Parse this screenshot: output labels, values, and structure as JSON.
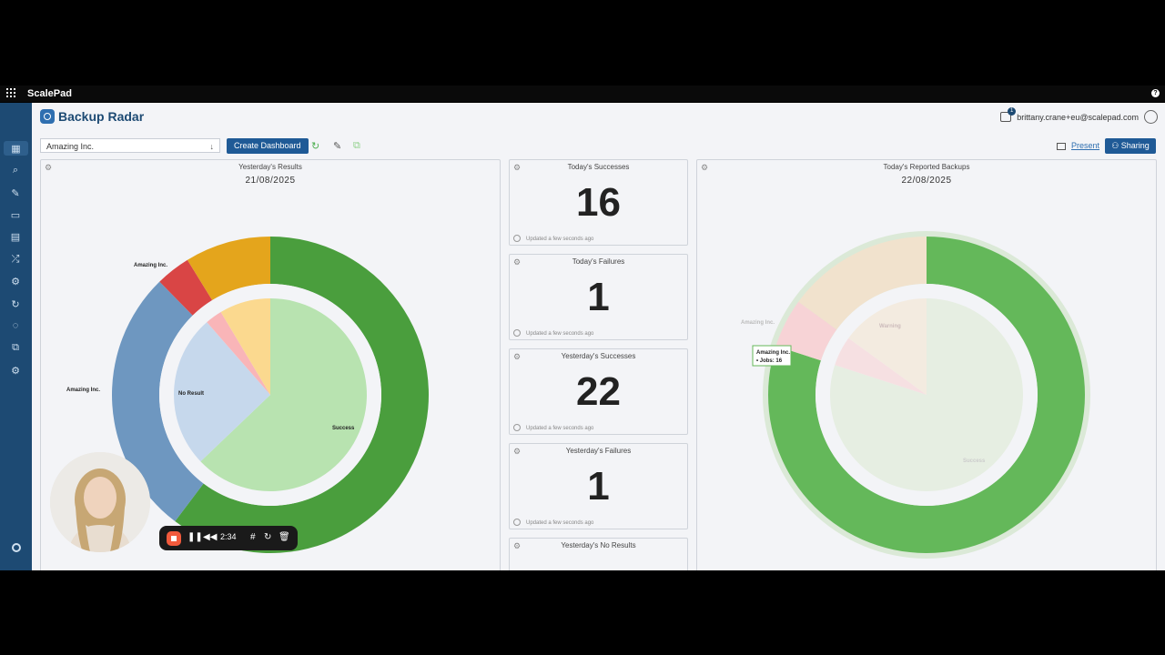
{
  "topbar": {
    "brand": "ScalePad",
    "help": "?"
  },
  "header": {
    "app_name": "Backup Radar",
    "notification_count": "1",
    "user_email": "brittany.crane+eu@scalepad.com"
  },
  "toolbar": {
    "company_select": "Amazing Inc.",
    "create_dashboard": "Create Dashboard",
    "present": "Present",
    "sharing": "Sharing"
  },
  "sidebar": {
    "icons": [
      "dashboard-icon",
      "search-icon",
      "wrench-icon",
      "card-icon",
      "report-icon",
      "shuffle-icon",
      "gear-icon",
      "sync-icon",
      "chat-icon",
      "integrations-icon",
      "settings-icon"
    ]
  },
  "panels": {
    "yesterday_results": {
      "title": "Yesterday's Results",
      "date": "21/08/2025"
    },
    "today_reported": {
      "title": "Today's Reported Backups",
      "date": "22/08/2025"
    }
  },
  "stats": [
    {
      "title": "Today's Successes",
      "value": "16",
      "updated": "Updated a few seconds ago"
    },
    {
      "title": "Today's Failures",
      "value": "1",
      "updated": "Updated a few seconds ago"
    },
    {
      "title": "Yesterday's Successes",
      "value": "22",
      "updated": "Updated a few seconds ago"
    },
    {
      "title": "Yesterday's Failures",
      "value": "1",
      "updated": "Updated a few seconds ago"
    },
    {
      "title": "Yesterday's No Results",
      "value": "",
      "updated": ""
    }
  ],
  "chart_data": [
    {
      "type": "pie",
      "title": "Yesterday's Results",
      "outer": {
        "slices": [
          {
            "label": "Success",
            "value": 22,
            "color": "#4a9e3d"
          },
          {
            "label": "Amazing Inc.",
            "value": 10,
            "color": "#6e97c0"
          },
          {
            "label": "Amazing Inc.",
            "value": 1.3,
            "color": "#d94545"
          },
          {
            "label": "",
            "value": 3.2,
            "color": "#e4a51c"
          }
        ]
      },
      "inner": {
        "slices": [
          {
            "label": "Success",
            "value": 22,
            "color": "#b8e3b0"
          },
          {
            "label": "No Result",
            "value": 9,
            "color": "#c6d8ec"
          },
          {
            "label": "",
            "value": 1,
            "color": "#f9b5b8"
          },
          {
            "label": "",
            "value": 3,
            "color": "#fbd98f"
          }
        ]
      },
      "annotations": [
        "Amazing Inc.",
        "Amazing Inc.",
        "No Result",
        "Success"
      ]
    },
    {
      "type": "pie",
      "title": "Today's Reported Backups",
      "outer": {
        "slices": [
          {
            "label": "Success",
            "value": 16,
            "color": "#64b85a"
          },
          {
            "label": "Amazing Inc.",
            "value": 1,
            "color": "#f7d3d6"
          },
          {
            "label": "Warning",
            "value": 3,
            "color": "#f1e2cd"
          }
        ]
      },
      "inner": {
        "slices": [
          {
            "label": "Success",
            "value": 16,
            "color": "#e6eee2"
          },
          {
            "label": "",
            "value": 1,
            "color": "#f6e0e2"
          },
          {
            "label": "Warning",
            "value": 3,
            "color": "#f3ebe0"
          }
        ]
      },
      "tooltip": {
        "line1": "Amazing Inc.",
        "line2": "• Jobs: 16"
      },
      "annotations": [
        "Amazing Inc.",
        "Warning",
        "Success"
      ]
    }
  ],
  "recorder": {
    "time": "2:34"
  }
}
